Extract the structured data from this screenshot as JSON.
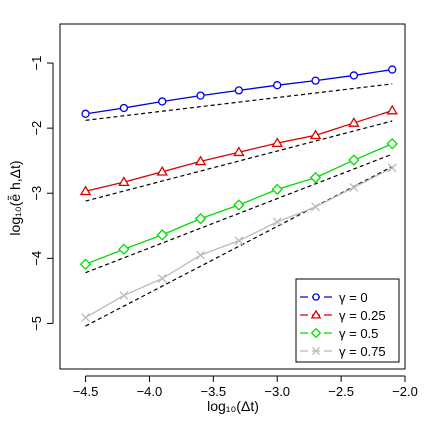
{
  "chart_data": {
    "type": "line",
    "xlabel": "log₁₀(Δt)",
    "ylabel": "log₁₀(ễ h,Δt)",
    "xlim": [
      -4.7,
      -2.0
    ],
    "ylim": [
      -5.7,
      -0.4
    ],
    "xticks": [
      -4.5,
      -4.0,
      -3.5,
      -3.0,
      -2.5,
      -2.0
    ],
    "xtick_labels": [
      "−4.5",
      "−4.0",
      "−3.5",
      "−3.0",
      "−2.5",
      "−2.0"
    ],
    "yticks": [
      -5,
      -4,
      -3,
      -2,
      -1
    ],
    "ytick_labels": [
      "−5",
      "−4",
      "−3",
      "−2",
      "−1"
    ],
    "legend_position": "bottom-right",
    "grid": false,
    "x": [
      -4.5,
      -4.2,
      -3.9,
      -3.6,
      -3.3,
      -3.0,
      -2.7,
      -2.4,
      -2.1
    ],
    "series": [
      {
        "name": "γ = 0",
        "color": "#0000dd",
        "marker": "circle",
        "values": [
          -1.78,
          -1.69,
          -1.59,
          -1.5,
          -1.42,
          -1.34,
          -1.27,
          -1.19,
          -1.1
        ]
      },
      {
        "name": "γ = 0.25",
        "color": "#dd0000",
        "marker": "triangle",
        "values": [
          -2.97,
          -2.83,
          -2.67,
          -2.51,
          -2.37,
          -2.23,
          -2.11,
          -1.92,
          -1.73
        ]
      },
      {
        "name": "γ = 0.5",
        "color": "#00dd00",
        "marker": "diamond",
        "values": [
          -4.09,
          -3.86,
          -3.64,
          -3.39,
          -3.18,
          -2.94,
          -2.76,
          -2.49,
          -2.24
        ]
      },
      {
        "name": "γ = 0.75",
        "color": "#bbbbbb",
        "marker": "cross",
        "values": [
          -4.91,
          -4.57,
          -4.31,
          -3.95,
          -3.73,
          -3.44,
          -3.21,
          -2.91,
          -2.61
        ]
      }
    ],
    "reference_lines": [
      {
        "x": [
          -4.5,
          -2.1
        ],
        "values": [
          -1.88,
          -1.32
        ]
      },
      {
        "x": [
          -4.5,
          -2.1
        ],
        "values": [
          -3.12,
          -1.89
        ]
      },
      {
        "x": [
          -4.5,
          -2.1
        ],
        "values": [
          -4.22,
          -2.4
        ]
      },
      {
        "x": [
          -4.5,
          -2.1
        ],
        "values": [
          -5.04,
          -2.59
        ]
      }
    ]
  }
}
